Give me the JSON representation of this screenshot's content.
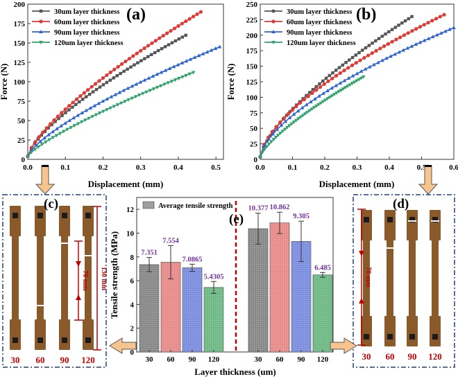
{
  "colors": {
    "s30": "#555555",
    "s60": "#e03a34",
    "s90": "#2b63d6",
    "s120": "#2fa36a",
    "bar30": "#8a8a8a",
    "bar60": "#e78d8c",
    "bar90": "#7f8fe0",
    "bar120": "#6fba86",
    "value_label": "#7030a0",
    "photo_label": "#c00000",
    "dashed_frame": "#1f3f7a",
    "divider": "#c00000",
    "arrow_fill": "#f7c48e",
    "arrow_stroke": "#555555",
    "strip": "#8b5a2b"
  },
  "legend_labels": [
    "30um layer thickness",
    "60um layer thickness",
    "90um layer thickness",
    "120um layer thickness"
  ],
  "chart_data": [
    {
      "id": "a",
      "panel_label": "(a)",
      "type": "line",
      "xlabel": "Displacement (mm)",
      "ylabel": "Force (N)",
      "xlim": [
        0.0,
        0.52
      ],
      "ylim": [
        0,
        200
      ],
      "xticks": [
        "0.0",
        "0.1",
        "0.2",
        "0.3",
        "0.4",
        "0.5"
      ],
      "yticks": [
        "0",
        "25",
        "50",
        "75",
        "100",
        "125",
        "150",
        "175",
        "200"
      ],
      "series": [
        {
          "name": "30um layer thickness",
          "key": "s30",
          "x_end": 0.42,
          "y_end": 160,
          "p": 0.72
        },
        {
          "name": "60um layer thickness",
          "key": "s60",
          "x_end": 0.46,
          "y_end": 190,
          "p": 0.74
        },
        {
          "name": "90um layer thickness",
          "key": "s90",
          "x_end": 0.51,
          "y_end": 145,
          "p": 0.74
        },
        {
          "name": "120um layer thickness",
          "key": "s120",
          "x_end": 0.44,
          "y_end": 112,
          "p": 0.8
        }
      ]
    },
    {
      "id": "b",
      "panel_label": "(b)",
      "type": "line",
      "xlabel": "Displacement (mm)",
      "ylabel": "Force (N)",
      "xlim": [
        0.0,
        0.6
      ],
      "ylim": [
        0,
        250
      ],
      "xticks": [
        "0.0",
        "0.1",
        "0.2",
        "0.3",
        "0.4",
        "0.5",
        "0.6"
      ],
      "yticks": [
        "0",
        "25",
        "50",
        "75",
        "100",
        "125",
        "150",
        "175",
        "200",
        "225",
        "250"
      ],
      "series": [
        {
          "name": "30um layer thickness",
          "key": "s30",
          "x_end": 0.47,
          "y_end": 230,
          "p": 0.7
        },
        {
          "name": "60um layer thickness",
          "key": "s60",
          "x_end": 0.57,
          "y_end": 233,
          "p": 0.64
        },
        {
          "name": "90um layer thickness",
          "key": "s90",
          "x_end": 0.6,
          "y_end": 212,
          "p": 0.64
        },
        {
          "name": "120um layer thickness",
          "key": "s120",
          "x_end": 0.32,
          "y_end": 133,
          "p": 0.75
        }
      ]
    },
    {
      "id": "e",
      "panel_label": "(e)",
      "type": "bar",
      "xlabel": "Layer thickness (um)",
      "ylabel": "Tensile strength (MPa)",
      "legend": "Average tensile strength",
      "ylim": [
        0,
        13
      ],
      "yticks": [
        "0",
        "2",
        "4",
        "6",
        "8",
        "10",
        "12"
      ],
      "groups": [
        {
          "categories": [
            "30",
            "60",
            "90",
            "120"
          ],
          "values": [
            7.351,
            7.554,
            7.0865,
            5.4305
          ],
          "labels": [
            "7.351",
            "7.554",
            "7.0865",
            "5.4305"
          ],
          "errors": [
            0.6,
            1.4,
            0.3,
            0.5
          ]
        },
        {
          "categories": [
            "30",
            "60",
            "90",
            "120"
          ],
          "values": [
            10.377,
            10.862,
            9.305,
            6.485
          ],
          "labels": [
            "10.377",
            "10.862",
            "9.305",
            "6.485"
          ],
          "errors": [
            1.3,
            0.9,
            1.7,
            0.2
          ]
        }
      ]
    }
  ],
  "photos": {
    "c": {
      "label": "(c)",
      "numbers": [
        "30",
        "60",
        "90",
        "120"
      ],
      "dim_inner": "70 mm",
      "dim_outer": "130 mm"
    },
    "d": {
      "label": "(d)",
      "numbers": [
        "30",
        "60",
        "90",
        "120"
      ],
      "dim": "70 mm"
    }
  }
}
